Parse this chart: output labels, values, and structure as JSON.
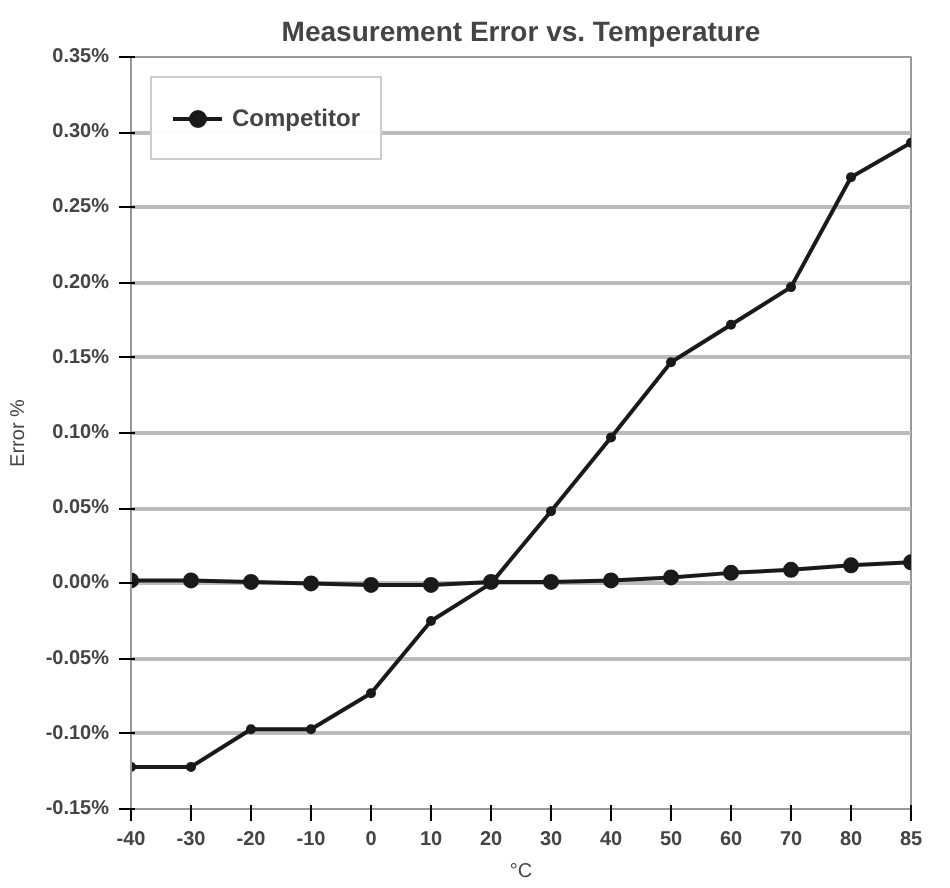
{
  "chart_data": {
    "type": "line",
    "title": "Measurement Error vs. Temperature",
    "xlabel": "°C",
    "ylabel": "Error %",
    "categories": [
      "-40",
      "-30",
      "-20",
      "-10",
      "0",
      "10",
      "20",
      "30",
      "40",
      "50",
      "60",
      "70",
      "80",
      "85"
    ],
    "series": [
      {
        "color": "#1a1a1a",
        "values": [
          0.002,
          0.002,
          0.001,
          0.0,
          -0.001,
          -0.001,
          0.001,
          0.001,
          0.002,
          0.004,
          0.007,
          0.009,
          0.012,
          0.014
        ]
      },
      {
        "name": "Competitor",
        "color": "#1a1a1a",
        "values": [
          -0.122,
          -0.122,
          -0.097,
          -0.097,
          -0.073,
          -0.025,
          0.0,
          0.048,
          0.097,
          0.147,
          0.172,
          0.197,
          0.27,
          0.293
        ]
      }
    ],
    "ylim": [
      -0.15,
      0.35
    ],
    "yticks": [
      {
        "value": -0.15,
        "label": "-0.15%"
      },
      {
        "value": -0.1,
        "label": "-0.10%"
      },
      {
        "value": -0.05,
        "label": "-0.05%"
      },
      {
        "value": 0,
        "label": "0.00%"
      },
      {
        "value": 0.05,
        "label": "0.05%"
      },
      {
        "value": 0.1,
        "label": "0.10%"
      },
      {
        "value": 0.15,
        "label": "0.15%"
      },
      {
        "value": 0.2,
        "label": "0.20%"
      },
      {
        "value": 0.25,
        "label": "0.25%"
      },
      {
        "value": 0.3,
        "label": "0.30%"
      },
      {
        "value": 0.35,
        "label": "0.35%"
      }
    ],
    "grid": "y",
    "legend": "top left",
    "marker": "circle",
    "line_style": "solid"
  }
}
